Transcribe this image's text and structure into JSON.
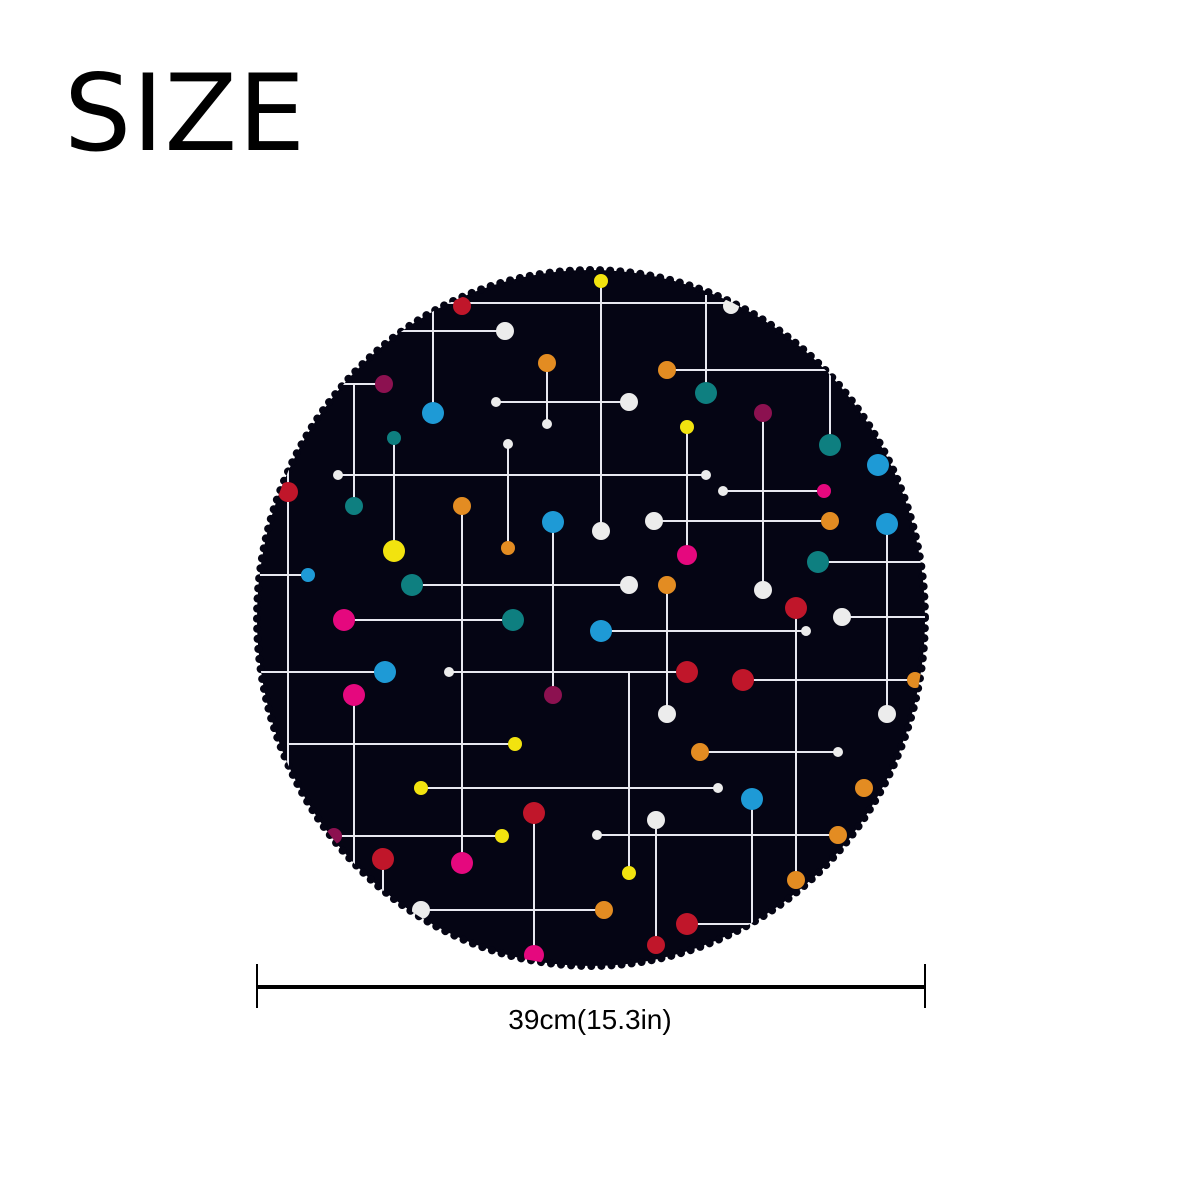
{
  "title": "SIZE",
  "dimension_label": "39cm(15.3in)",
  "product": {
    "shape": "round",
    "background_color": "#050514",
    "line_color": "#e8e8f0",
    "dot_colors": [
      "#f2e30f",
      "#c0162a",
      "#ececec",
      "#e38c22",
      "#0e7f80",
      "#1e9ad6",
      "#e5087e",
      "#8c1150"
    ]
  }
}
